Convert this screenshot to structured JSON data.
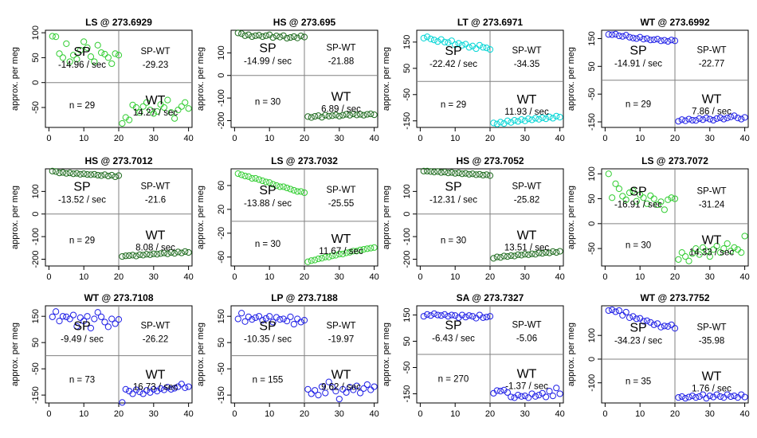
{
  "figure": {
    "ylabel": "approx. per meg",
    "x_ticks": [
      0,
      10,
      20,
      30,
      40
    ],
    "marker": "open-circle",
    "colors": {
      "green": "#32CD32",
      "darkgreen": "#1E6B1E",
      "cyan": "#00D5D5",
      "blue": "#1E1EE6",
      "line": "#808080"
    }
  },
  "chart_data": [
    {
      "type": "scatter",
      "title": "LS @ 273.6929",
      "color": "green",
      "ylim": [
        -90,
        105
      ],
      "yticks": [
        100,
        50,
        0,
        -50
      ],
      "labels": {
        "sp": "SP",
        "sp_rate": "-14.96 / sec",
        "diff_label": "SP-WT",
        "diff": "-29.23",
        "n": "n = 29",
        "wt": "WT",
        "wt_rate": "14.27 / sec"
      },
      "sp_values": [
        93,
        92,
        58,
        50,
        78,
        42,
        55,
        47,
        65,
        82,
        70,
        52,
        42,
        75,
        60,
        57,
        50,
        38,
        58,
        55
      ],
      "wt_values": [
        -82,
        -70,
        -75,
        -45,
        -50,
        -60,
        -48,
        -40,
        -55,
        -62,
        -58,
        -44,
        -50,
        -35,
        -60,
        -72,
        -55,
        -48,
        -40,
        -52
      ]
    },
    {
      "type": "scatter",
      "title": "HS @ 273.695",
      "color": "darkgreen",
      "ylim": [
        -230,
        200
      ],
      "yticks": [
        100,
        0,
        -100,
        -200
      ],
      "labels": {
        "sp": "SP",
        "sp_rate": "-14.99 / sec",
        "diff_label": "SP-WT",
        "diff": "-21.88",
        "n": "n = 30",
        "wt": "WT",
        "wt_rate": "6.89 / sec"
      },
      "sp_values": [
        188,
        185,
        176,
        180,
        172,
        176,
        178,
        172,
        176,
        180,
        168,
        175,
        170,
        176,
        165,
        168,
        172,
        166,
        175,
        170
      ],
      "wt_values": [
        -182,
        -186,
        -181,
        -178,
        -185,
        -176,
        -180,
        -178,
        -175,
        -180,
        -176,
        -172,
        -176,
        -170,
        -175,
        -172,
        -176,
        -172,
        -170,
        -174
      ]
    },
    {
      "type": "scatter",
      "title": "LT @ 273.6971",
      "color": "cyan",
      "ylim": [
        -175,
        195
      ],
      "yticks": [
        150,
        50,
        -50,
        -150
      ],
      "labels": {
        "sp": "SP",
        "sp_rate": "-22.42 / sec",
        "diff_label": "SP-WT",
        "diff": "-34.35",
        "n": "n = 29",
        "wt": "WT",
        "wt_rate": "11.93 / sec"
      },
      "sp_values": [
        165,
        170,
        162,
        158,
        152,
        160,
        150,
        148,
        155,
        140,
        145,
        138,
        142,
        130,
        135,
        125,
        138,
        130,
        128,
        122
      ],
      "wt_values": [
        -158,
        -162,
        -155,
        -160,
        -150,
        -156,
        -148,
        -152,
        -145,
        -150,
        -142,
        -146,
        -140,
        -144,
        -138,
        -142,
        -135,
        -140,
        -132,
        -136
      ]
    },
    {
      "type": "scatter",
      "title": "WT @ 273.6992",
      "color": "blue",
      "ylim": [
        -170,
        180
      ],
      "yticks": [
        150,
        50,
        -50,
        -150
      ],
      "labels": {
        "sp": "SP",
        "sp_rate": "-14.91 / sec",
        "diff_label": "SP-WT",
        "diff": "-22.77",
        "n": "n = 29",
        "wt": "WT",
        "wt_rate": "7.86 / sec"
      },
      "sp_values": [
        165,
        164,
        166,
        160,
        158,
        162,
        155,
        152,
        150,
        155,
        148,
        150,
        145,
        146,
        148,
        142,
        144,
        140,
        145,
        142
      ],
      "wt_values": [
        -148,
        -142,
        -146,
        -140,
        -144,
        -145,
        -138,
        -142,
        -136,
        -140,
        -144,
        -138,
        -135,
        -140,
        -136,
        -132,
        -128,
        -136,
        -140,
        -134
      ]
    },
    {
      "type": "scatter",
      "title": "HS @ 273.7012",
      "color": "darkgreen",
      "ylim": [
        -230,
        200
      ],
      "yticks": [
        100,
        0,
        -100,
        -200
      ],
      "labels": {
        "sp": "SP",
        "sp_rate": "-13.52 / sec",
        "diff_label": "SP-WT",
        "diff": "-21.6",
        "n": "n = 29",
        "wt": "WT",
        "wt_rate": "8.08 / sec"
      },
      "sp_values": [
        190,
        188,
        182,
        184,
        180,
        182,
        178,
        180,
        176,
        178,
        175,
        174,
        176,
        172,
        170,
        174,
        168,
        172,
        165,
        170
      ],
      "wt_values": [
        -188,
        -185,
        -184,
        -182,
        -186,
        -180,
        -182,
        -178,
        -180,
        -176,
        -178,
        -175,
        -172,
        -176,
        -170,
        -174,
        -168,
        -172,
        -166,
        -170
      ]
    },
    {
      "type": "scatter",
      "title": "LS @ 273.7032",
      "color": "green",
      "ylim": [
        -75,
        88
      ],
      "yticks": [
        60,
        20,
        -20,
        -60
      ],
      "labels": {
        "sp": "SP",
        "sp_rate": "-13.88 / sec",
        "diff_label": "SP-WT",
        "diff": "-25.55",
        "n": "n = 30",
        "wt": "WT",
        "wt_rate": "11.67 / sec"
      },
      "sp_values": [
        80,
        78,
        76,
        75,
        72,
        72,
        70,
        68,
        66,
        65,
        62,
        60,
        58,
        58,
        56,
        54,
        52,
        50,
        50,
        48
      ],
      "wt_values": [
        -68,
        -66,
        -65,
        -63,
        -62,
        -60,
        -60,
        -58,
        -57,
        -55,
        -55,
        -53,
        -52,
        -50,
        -50,
        -48,
        -47,
        -46,
        -45,
        -44
      ]
    },
    {
      "type": "scatter",
      "title": "HS @ 273.7052",
      "color": "darkgreen",
      "ylim": [
        -230,
        200
      ],
      "yticks": [
        100,
        0,
        -100,
        -200
      ],
      "labels": {
        "sp": "SP",
        "sp_rate": "-12.31 / sec",
        "diff_label": "SP-WT",
        "diff": "-25.82",
        "n": "n = 30",
        "wt": "WT",
        "wt_rate": "13.51 / sec"
      },
      "sp_values": [
        190,
        190,
        188,
        186,
        188,
        184,
        186,
        182,
        184,
        180,
        182,
        178,
        180,
        176,
        178,
        174,
        176,
        172,
        174,
        170
      ],
      "wt_values": [
        -196,
        -190,
        -192,
        -186,
        -188,
        -184,
        -186,
        -180,
        -182,
        -178,
        -180,
        -176,
        -178,
        -172,
        -174,
        -170,
        -172,
        -166,
        -170,
        -165
      ]
    },
    {
      "type": "scatter",
      "title": "LS @ 273.7072",
      "color": "green",
      "ylim": [
        -85,
        110
      ],
      "yticks": [
        100,
        50,
        0,
        -50
      ],
      "labels": {
        "sp": "SP",
        "sp_rate": "-16.91 / sec",
        "diff_label": "SP-WT",
        "diff": "-31.24",
        "n": "n = 30",
        "wt": "WT",
        "wt_rate": "14.33 / sec"
      },
      "sp_values": [
        100,
        52,
        80,
        70,
        55,
        48,
        62,
        66,
        45,
        58,
        52,
        40,
        56,
        50,
        38,
        44,
        28,
        48,
        52,
        50
      ],
      "wt_values": [
        -72,
        -58,
        -66,
        -75,
        -60,
        -50,
        -62,
        -48,
        -55,
        -66,
        -52,
        -45,
        -58,
        -50,
        -40,
        -55,
        -48,
        -52,
        -58,
        -25
      ]
    },
    {
      "type": "scatter",
      "title": "WT @ 273.7108",
      "color": "blue",
      "ylim": [
        -180,
        190
      ],
      "yticks": [
        150,
        50,
        -50,
        -150
      ],
      "labels": {
        "sp": "SP",
        "sp_rate": "-9.49 / sec",
        "diff_label": "SP-WT",
        "diff": "-26.22",
        "n": "n = 73",
        "wt": "WT",
        "wt_rate": "16.73 / sec"
      },
      "sp_values": [
        148,
        168,
        132,
        150,
        148,
        140,
        155,
        112,
        145,
        132,
        150,
        105,
        140,
        165,
        148,
        128,
        110,
        140,
        122,
        138
      ],
      "wt_values": [
        -178,
        -128,
        -135,
        -145,
        -130,
        -138,
        -145,
        -132,
        -140,
        -128,
        -135,
        -125,
        -130,
        -120,
        -128,
        -124,
        -118,
        -108,
        -122,
        -118
      ]
    },
    {
      "type": "scatter",
      "title": "LP @ 273.7188",
      "color": "blue",
      "ylim": [
        -180,
        190
      ],
      "yticks": [
        150,
        50,
        -50,
        -150
      ],
      "labels": {
        "sp": "SP",
        "sp_rate": "-10.35 / sec",
        "diff_label": "SP-WT",
        "diff": "-19.97",
        "n": "n = 155",
        "wt": "WT",
        "wt_rate": "9.62 / sec"
      },
      "sp_values": [
        140,
        162,
        130,
        148,
        138,
        145,
        150,
        135,
        142,
        150,
        128,
        146,
        138,
        140,
        132,
        148,
        120,
        140,
        128,
        135
      ],
      "wt_values": [
        -128,
        -145,
        -132,
        -150,
        -118,
        -142,
        -100,
        -120,
        -135,
        -165,
        -128,
        -140,
        -120,
        -130,
        -115,
        -142,
        -125,
        -110,
        -130,
        -118
      ]
    },
    {
      "type": "scatter",
      "title": "SA @ 273.7327",
      "color": "blue",
      "ylim": [
        -185,
        185
      ],
      "yticks": [
        150,
        50,
        -50,
        -150
      ],
      "labels": {
        "sp": "SP",
        "sp_rate": "-6.43 / sec",
        "diff_label": "SP-WT",
        "diff": "-5.06",
        "n": "n = 270",
        "wt": "WT",
        "wt_rate": "-1.37 / sec"
      },
      "sp_values": [
        145,
        152,
        148,
        155,
        150,
        148,
        152,
        145,
        150,
        148,
        140,
        150,
        142,
        148,
        145,
        138,
        150,
        140,
        142,
        145
      ],
      "wt_values": [
        -148,
        -138,
        -140,
        -136,
        -145,
        -162,
        -165,
        -155,
        -160,
        -158,
        -165,
        -150,
        -160,
        -155,
        -148,
        -162,
        -140,
        -158,
        -128,
        -150
      ]
    },
    {
      "type": "scatter",
      "title": "WT @ 273.7752",
      "color": "blue",
      "ylim": [
        -185,
        225
      ],
      "yticks": [
        100,
        0,
        -100
      ],
      "labels": {
        "sp": "SP",
        "sp_rate": "-34.23 / sec",
        "diff_label": "SP-WT",
        "diff": "-35.98",
        "n": "n = 35",
        "wt": "WT",
        "wt_rate": "1.76 / sec"
      },
      "sp_values": [
        205,
        208,
        200,
        205,
        185,
        198,
        175,
        180,
        170,
        172,
        160,
        162,
        155,
        145,
        150,
        135,
        140,
        138,
        145,
        130
      ],
      "wt_values": [
        -162,
        -158,
        -165,
        -160,
        -155,
        -162,
        -158,
        -150,
        -165,
        -155,
        -160,
        -150,
        -158,
        -162,
        -150,
        -158,
        -155,
        -162,
        -150,
        -160
      ]
    }
  ]
}
